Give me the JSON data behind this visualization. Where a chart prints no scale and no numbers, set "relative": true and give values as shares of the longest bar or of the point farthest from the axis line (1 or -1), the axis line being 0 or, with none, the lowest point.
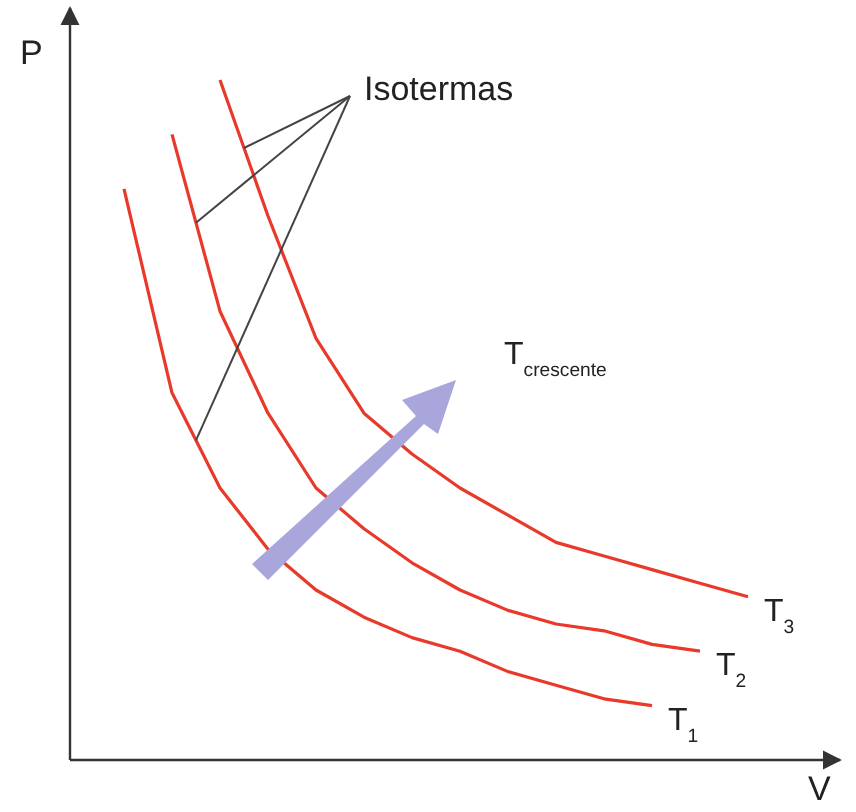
{
  "chart_data": {
    "type": "line",
    "relative": true,
    "xlabel": "V",
    "ylabel": "P",
    "marker": "none",
    "line_style": "solid",
    "annotations": [
      "Isotermas",
      "T$_{crescente}$"
    ],
    "categories": [
      null,
      null,
      null,
      null,
      null,
      null,
      null,
      null,
      null,
      null,
      null,
      null,
      null,
      null
    ],
    "series": [
      {
        "name": "T$_{1}$",
        "color": "#e8392b",
        "values": [
          0.84,
          0.54,
          0.4,
          0.31,
          0.25,
          0.21,
          0.18,
          0.16,
          0.13,
          0.11,
          0.09,
          0.08,
          null,
          null
        ]
      },
      {
        "name": "T$_{2}$",
        "color": "#e8392b",
        "values": [
          null,
          0.92,
          0.66,
          0.51,
          0.4,
          0.34,
          0.29,
          0.25,
          0.22,
          0.2,
          0.19,
          0.17,
          0.16,
          null
        ]
      },
      {
        "name": "T$_{3}$",
        "color": "#e8392b",
        "values": [
          null,
          null,
          1,
          0.8,
          0.62,
          0.51,
          0.45,
          0.4,
          0.36,
          0.32,
          0.3,
          0.28,
          0.26,
          0.24
        ]
      }
    ]
  }
}
